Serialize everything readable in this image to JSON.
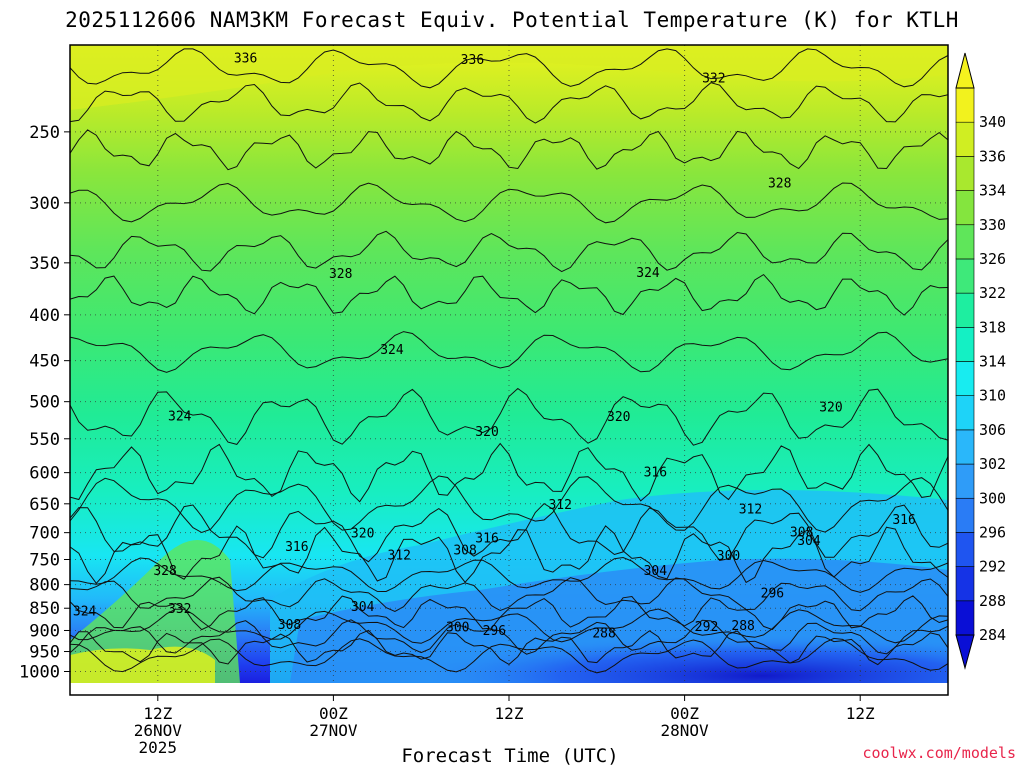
{
  "title": "2025112606 NAM3KM Forecast Equiv. Potential Temperature (K) for KTLH",
  "credit": "coolwx.com/models",
  "chart_data": {
    "type": "contour-timeheight",
    "title": "2025112606 NAM3KM Forecast Equiv. Potential Temperature (K) for KTLH",
    "xlabel": "Forecast Time (UTC)",
    "ylabel": "",
    "y_scale": "log-pressure (hPa), reversed",
    "ylim": [
      1030,
      200
    ],
    "x_forecast_hours": [
      0,
      60
    ],
    "y_ticks": [
      250,
      300,
      350,
      400,
      450,
      500,
      550,
      600,
      650,
      700,
      750,
      800,
      850,
      900,
      950,
      1000
    ],
    "x_ticks": [
      {
        "hour": 6,
        "line1": "12Z",
        "line2": "26NOV",
        "line3": "2025"
      },
      {
        "hour": 18,
        "line1": "00Z",
        "line2": "27NOV",
        "line3": ""
      },
      {
        "hour": 30,
        "line1": "12Z",
        "line2": "",
        "line3": ""
      },
      {
        "hour": 42,
        "line1": "00Z",
        "line2": "28NOV",
        "line3": ""
      },
      {
        "hour": 54,
        "line1": "12Z",
        "line2": "",
        "line3": ""
      }
    ],
    "colorbar_levels": [
      284,
      288,
      292,
      296,
      300,
      302,
      306,
      310,
      314,
      318,
      322,
      326,
      330,
      334,
      336,
      340
    ],
    "colorbar_colors": [
      "#0a0fd6",
      "#1533e6",
      "#1f55f0",
      "#2a7cf5",
      "#2f9cf8",
      "#2ab7fa",
      "#1ed3f8",
      "#18ecf0",
      "#14f0c4",
      "#1eeea0",
      "#3ee97a",
      "#5fe65a",
      "#84e53e",
      "#a9e82e",
      "#d0ee22",
      "#f2f21e"
    ],
    "contour_labels": [
      {
        "text": "336",
        "hour": 12.0,
        "p": 208
      },
      {
        "text": "336",
        "hour": 27.5,
        "p": 209
      },
      {
        "text": "332",
        "hour": 44.0,
        "p": 219
      },
      {
        "text": "328",
        "hour": 48.5,
        "p": 287
      },
      {
        "text": "328",
        "hour": 18.5,
        "p": 362
      },
      {
        "text": "324",
        "hour": 39.5,
        "p": 361
      },
      {
        "text": "324",
        "hour": 22.0,
        "p": 440
      },
      {
        "text": "324",
        "hour": 7.5,
        "p": 522
      },
      {
        "text": "320",
        "hour": 37.5,
        "p": 523
      },
      {
        "text": "320",
        "hour": 52.0,
        "p": 510
      },
      {
        "text": "320",
        "hour": 28.5,
        "p": 543
      },
      {
        "text": "316",
        "hour": 40.0,
        "p": 603
      },
      {
        "text": "312",
        "hour": 33.5,
        "p": 655
      },
      {
        "text": "312",
        "hour": 46.5,
        "p": 663
      },
      {
        "text": "316",
        "hour": 57.0,
        "p": 681
      },
      {
        "text": "320",
        "hour": 20.0,
        "p": 705
      },
      {
        "text": "316",
        "hour": 15.5,
        "p": 730
      },
      {
        "text": "316",
        "hour": 28.5,
        "p": 714
      },
      {
        "text": "308",
        "hour": 50.0,
        "p": 703
      },
      {
        "text": "304",
        "hour": 50.5,
        "p": 719
      },
      {
        "text": "308",
        "hour": 27.0,
        "p": 737
      },
      {
        "text": "312",
        "hour": 22.5,
        "p": 746
      },
      {
        "text": "300",
        "hour": 45.0,
        "p": 747
      },
      {
        "text": "328",
        "hour": 6.5,
        "p": 776
      },
      {
        "text": "304",
        "hour": 40.0,
        "p": 776
      },
      {
        "text": "296",
        "hour": 48.0,
        "p": 823
      },
      {
        "text": "332",
        "hour": 7.5,
        "p": 856
      },
      {
        "text": "324",
        "hour": 1.0,
        "p": 862
      },
      {
        "text": "304",
        "hour": 20.0,
        "p": 852
      },
      {
        "text": "308",
        "hour": 15.0,
        "p": 892
      },
      {
        "text": "300",
        "hour": 26.5,
        "p": 898
      },
      {
        "text": "296",
        "hour": 29.0,
        "p": 906
      },
      {
        "text": "288",
        "hour": 36.5,
        "p": 912
      },
      {
        "text": "292",
        "hour": 43.5,
        "p": 897
      },
      {
        "text": "288",
        "hour": 46.0,
        "p": 894
      }
    ]
  }
}
